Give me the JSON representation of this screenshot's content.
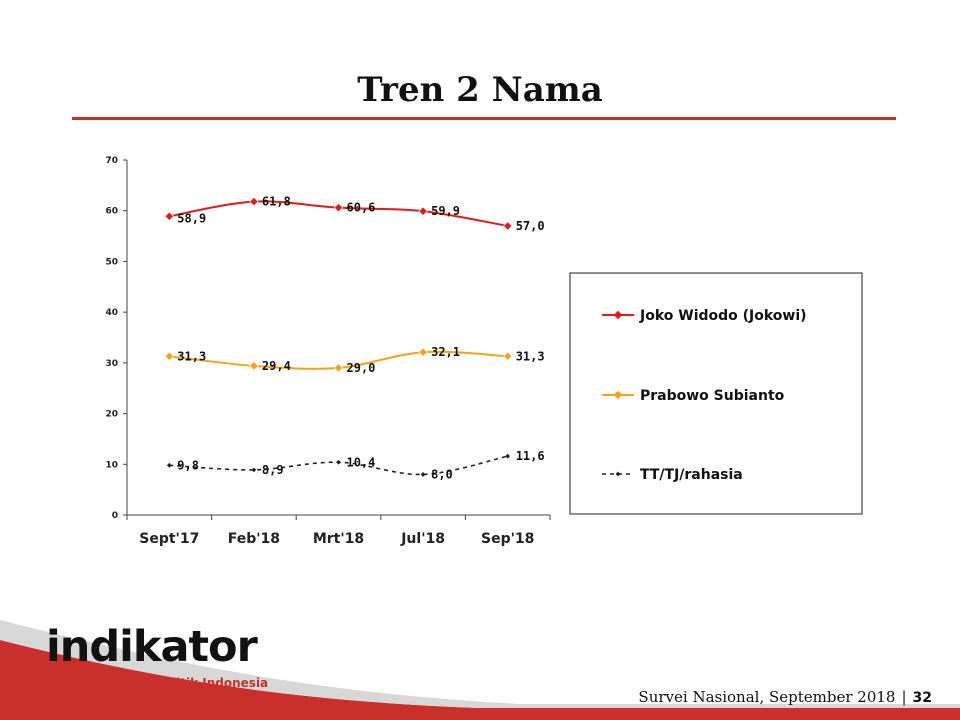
{
  "slide": {
    "title": "Tren 2 Nama",
    "footer_text": "Survei Nasional, September 2018",
    "footer_separator": "|",
    "page_number": "32"
  },
  "logo": {
    "name": "indikator",
    "tagline": "Politik Indonesia",
    "color": "#c9302c"
  },
  "chart_data": {
    "type": "line",
    "categories": [
      "Sept'17",
      "Feb'18",
      "Mrt'18",
      "Jul'18",
      "Sep'18"
    ],
    "ylim": [
      0,
      70
    ],
    "yticks": [
      0,
      10,
      20,
      30,
      40,
      50,
      60,
      70
    ],
    "legend_position": "right",
    "grid": false,
    "series": [
      {
        "name": "Joko Widodo (Jokowi)",
        "values": [
          58.9,
          61.8,
          60.6,
          59.9,
          57.0
        ],
        "labels": [
          "58,9",
          "61,8",
          "60,6",
          "59,9",
          "57,0"
        ],
        "color": "#e01b1b",
        "dashed": false
      },
      {
        "name": "Prabowo Subianto",
        "values": [
          31.3,
          29.4,
          29.0,
          32.1,
          31.3
        ],
        "labels": [
          "31,3",
          "29,4",
          "29,0",
          "32,1",
          "31,3"
        ],
        "color": "#f5a21a",
        "dashed": false
      },
      {
        "name": "TT/TJ/rahasia",
        "values": [
          9.8,
          8.9,
          10.4,
          8.0,
          11.6
        ],
        "labels": [
          "9,8",
          "8,9",
          "10,4",
          "8,0",
          "11,6"
        ],
        "color": "#222222",
        "dashed": true
      }
    ]
  }
}
